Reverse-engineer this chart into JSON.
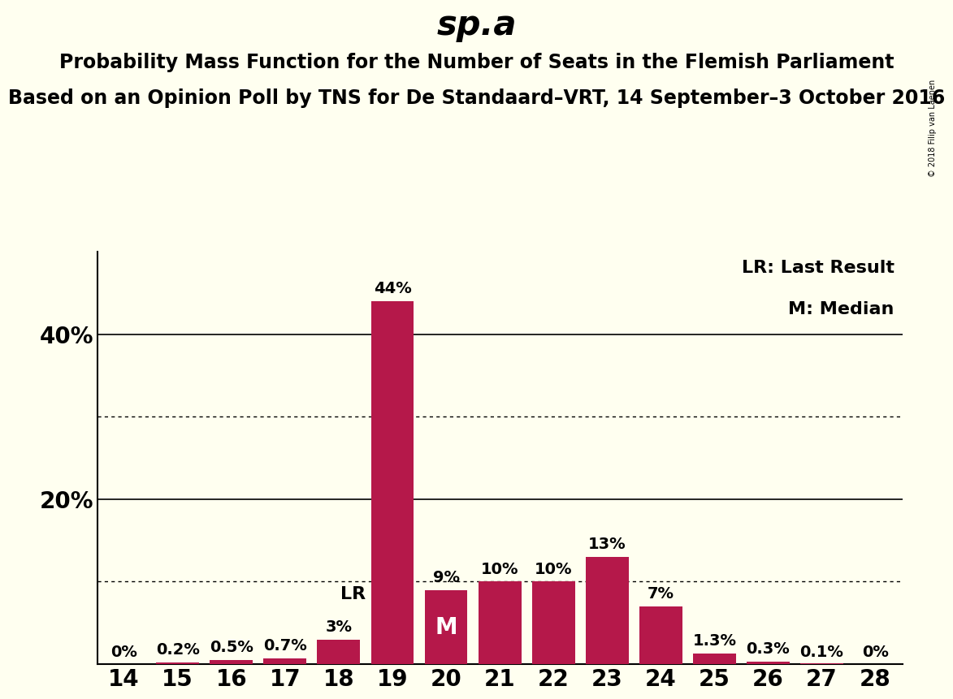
{
  "title": "sp.a",
  "subtitle1": "Probability Mass Function for the Number of Seats in the Flemish Parliament",
  "subtitle2": "Based on an Opinion Poll by TNS for De Standaard–VRT, 14 September–3 October 2016",
  "copyright": "© 2018 Filip van Laenen",
  "seats": [
    14,
    15,
    16,
    17,
    18,
    19,
    20,
    21,
    22,
    23,
    24,
    25,
    26,
    27,
    28
  ],
  "probabilities": [
    0.0,
    0.2,
    0.5,
    0.7,
    3.0,
    44.0,
    9.0,
    10.0,
    10.0,
    13.0,
    7.0,
    1.3,
    0.3,
    0.1,
    0.0
  ],
  "bar_color": "#b5184a",
  "background_color": "#fffff0",
  "last_result": 19,
  "median": 20,
  "xlim": [
    13.5,
    28.5
  ],
  "ylim": [
    0,
    50
  ],
  "title_fontsize": 30,
  "subtitle_fontsize": 17,
  "tick_fontsize": 20,
  "annotation_fontsize": 14,
  "legend_fontsize": 16,
  "bar_label_fontsize": 14
}
